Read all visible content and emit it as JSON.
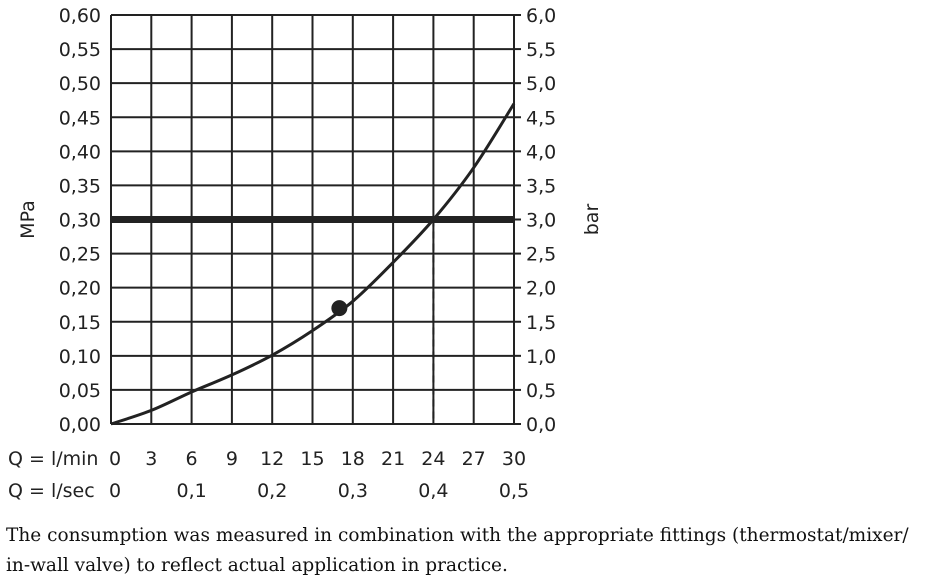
{
  "chart_data": {
    "type": "line",
    "title": "",
    "left_axis": {
      "label": "MPa",
      "range": [
        0,
        0.6
      ],
      "ticks": [
        "0,00",
        "0,05",
        "0,10",
        "0,15",
        "0,20",
        "0,25",
        "0,30",
        "0,35",
        "0,40",
        "0,45",
        "0,50",
        "0,55",
        "0,60"
      ]
    },
    "right_axis": {
      "label": "bar",
      "range": [
        0,
        6.0
      ],
      "ticks": [
        "0,0",
        "0,5",
        "1,0",
        "1,5",
        "2,0",
        "2,5",
        "3,0",
        "3,5",
        "4,0",
        "4,5",
        "5,0",
        "5,5",
        "6,0"
      ]
    },
    "x_axis_lmin": {
      "label": "Q = l/min",
      "range": [
        0,
        30
      ],
      "ticks": [
        "0",
        "3",
        "6",
        "9",
        "12",
        "15",
        "18",
        "21",
        "24",
        "27",
        "30"
      ]
    },
    "x_axis_lsec": {
      "label": "Q = l/sec",
      "ticks": [
        {
          "value": 0,
          "label": "0"
        },
        {
          "value": 0.1,
          "label": "0,1"
        },
        {
          "value": 0.2,
          "label": "0,2"
        },
        {
          "value": 0.3,
          "label": "0,3"
        },
        {
          "value": 0.4,
          "label": "0,4"
        },
        {
          "value": 0.5,
          "label": "0,5"
        }
      ]
    },
    "grid": true,
    "series": [
      {
        "x": [
          0,
          3,
          6,
          9,
          12,
          15,
          18,
          21,
          24,
          27,
          30
        ],
        "y": [
          0,
          0.02,
          0.047,
          0.072,
          0.101,
          0.137,
          0.18,
          0.237,
          0.3,
          0.376,
          0.47
        ]
      }
    ],
    "reference_line": {
      "y": 0.3
    },
    "intersection": {
      "x": 24,
      "y": 0.3
    },
    "marker": {
      "x": 17,
      "y": 0.17
    }
  },
  "caption": {
    "line1": "The consumption was measured in combination with the appropriate fittings (thermostat/mixer/",
    "line2": "in-wall valve) to reflect actual application in practice."
  }
}
